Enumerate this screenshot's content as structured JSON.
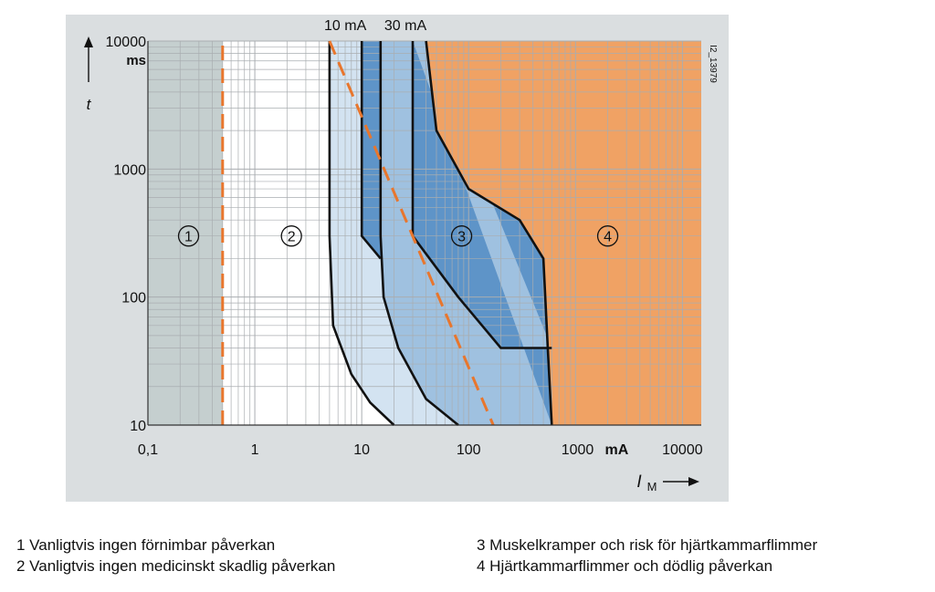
{
  "chart_data": {
    "type": "area",
    "xscale": "log",
    "yscale": "log",
    "xlim": [
      0.1,
      15000
    ],
    "ylim": [
      10,
      10000
    ],
    "x_ticks": [
      "0,1",
      "1",
      "10",
      "100",
      "1000",
      "10000"
    ],
    "x_unit": "mA",
    "y_ticks": [
      "10",
      "100",
      "1000",
      "10000"
    ],
    "y_unit": "ms",
    "ylabel": "t",
    "xlabel_main": "I",
    "xlabel_sub": "M",
    "top_labels": [
      "10 mA",
      "30 mA"
    ],
    "code": "I2_13979",
    "grid": true,
    "zones": [
      {
        "number": "1",
        "marker": "①",
        "label_x": 0.24,
        "label_y": 300
      },
      {
        "number": "2",
        "marker": "②",
        "label_x": 2.2,
        "label_y": 300
      },
      {
        "number": "3",
        "marker": "③",
        "label_x": 86,
        "label_y": 300
      },
      {
        "number": "4",
        "marker": "④",
        "label_x": 2000,
        "label_y": 300
      }
    ],
    "curves": {
      "threshold_1": [
        [
          0.5,
          10
        ],
        [
          0.5,
          10000
        ]
      ],
      "threshold_2": [
        [
          5,
          10000
        ],
        [
          5,
          300
        ],
        [
          5.4,
          60
        ],
        [
          8,
          25
        ],
        [
          12,
          15
        ],
        [
          20,
          10
        ]
      ],
      "threshold_3": [
        [
          15,
          10000
        ],
        [
          15,
          300
        ],
        [
          16,
          100
        ],
        [
          22,
          40
        ],
        [
          40,
          16
        ],
        [
          80,
          10
        ]
      ],
      "threshold_4": [
        [
          600,
          10
        ],
        [
          550,
          40
        ],
        [
          500,
          200
        ],
        [
          300,
          400
        ],
        [
          100,
          700
        ],
        [
          50,
          2000
        ],
        [
          40,
          10000
        ]
      ],
      "rcd_10mA": [
        [
          10,
          10000
        ],
        [
          10,
          300
        ],
        [
          15,
          200
        ]
      ],
      "rcd_30mA": [
        [
          30,
          10000
        ],
        [
          30,
          300
        ],
        [
          80,
          100
        ],
        [
          200,
          40
        ],
        [
          600,
          40
        ]
      ],
      "dashed_left": [
        [
          0.5,
          10
        ],
        [
          0.5,
          10000
        ]
      ],
      "dashed_diagonal": [
        [
          5,
          10000
        ],
        [
          170,
          10
        ]
      ]
    },
    "colors": {
      "zone1": "#c5cfcf",
      "zone2": "#ffffff",
      "zone3_light": "#d3e3f1",
      "zone3_mid": "#9fc1e0",
      "zone3_dark": "#5e94c8",
      "zone4": "#f0a264",
      "frame_bg": "#dadee0",
      "dashed": "#e8762d"
    }
  },
  "legend": {
    "item1": "1 Vanligtvis ingen förnimbar påverkan",
    "item2": "2 Vanligtvis ingen medicinskt skadlig påverkan",
    "item3": "3 Muskelkramper och risk för hjärtkammarflimmer",
    "item4": "4 Hjärtkammarflimmer och dödlig påverkan"
  }
}
